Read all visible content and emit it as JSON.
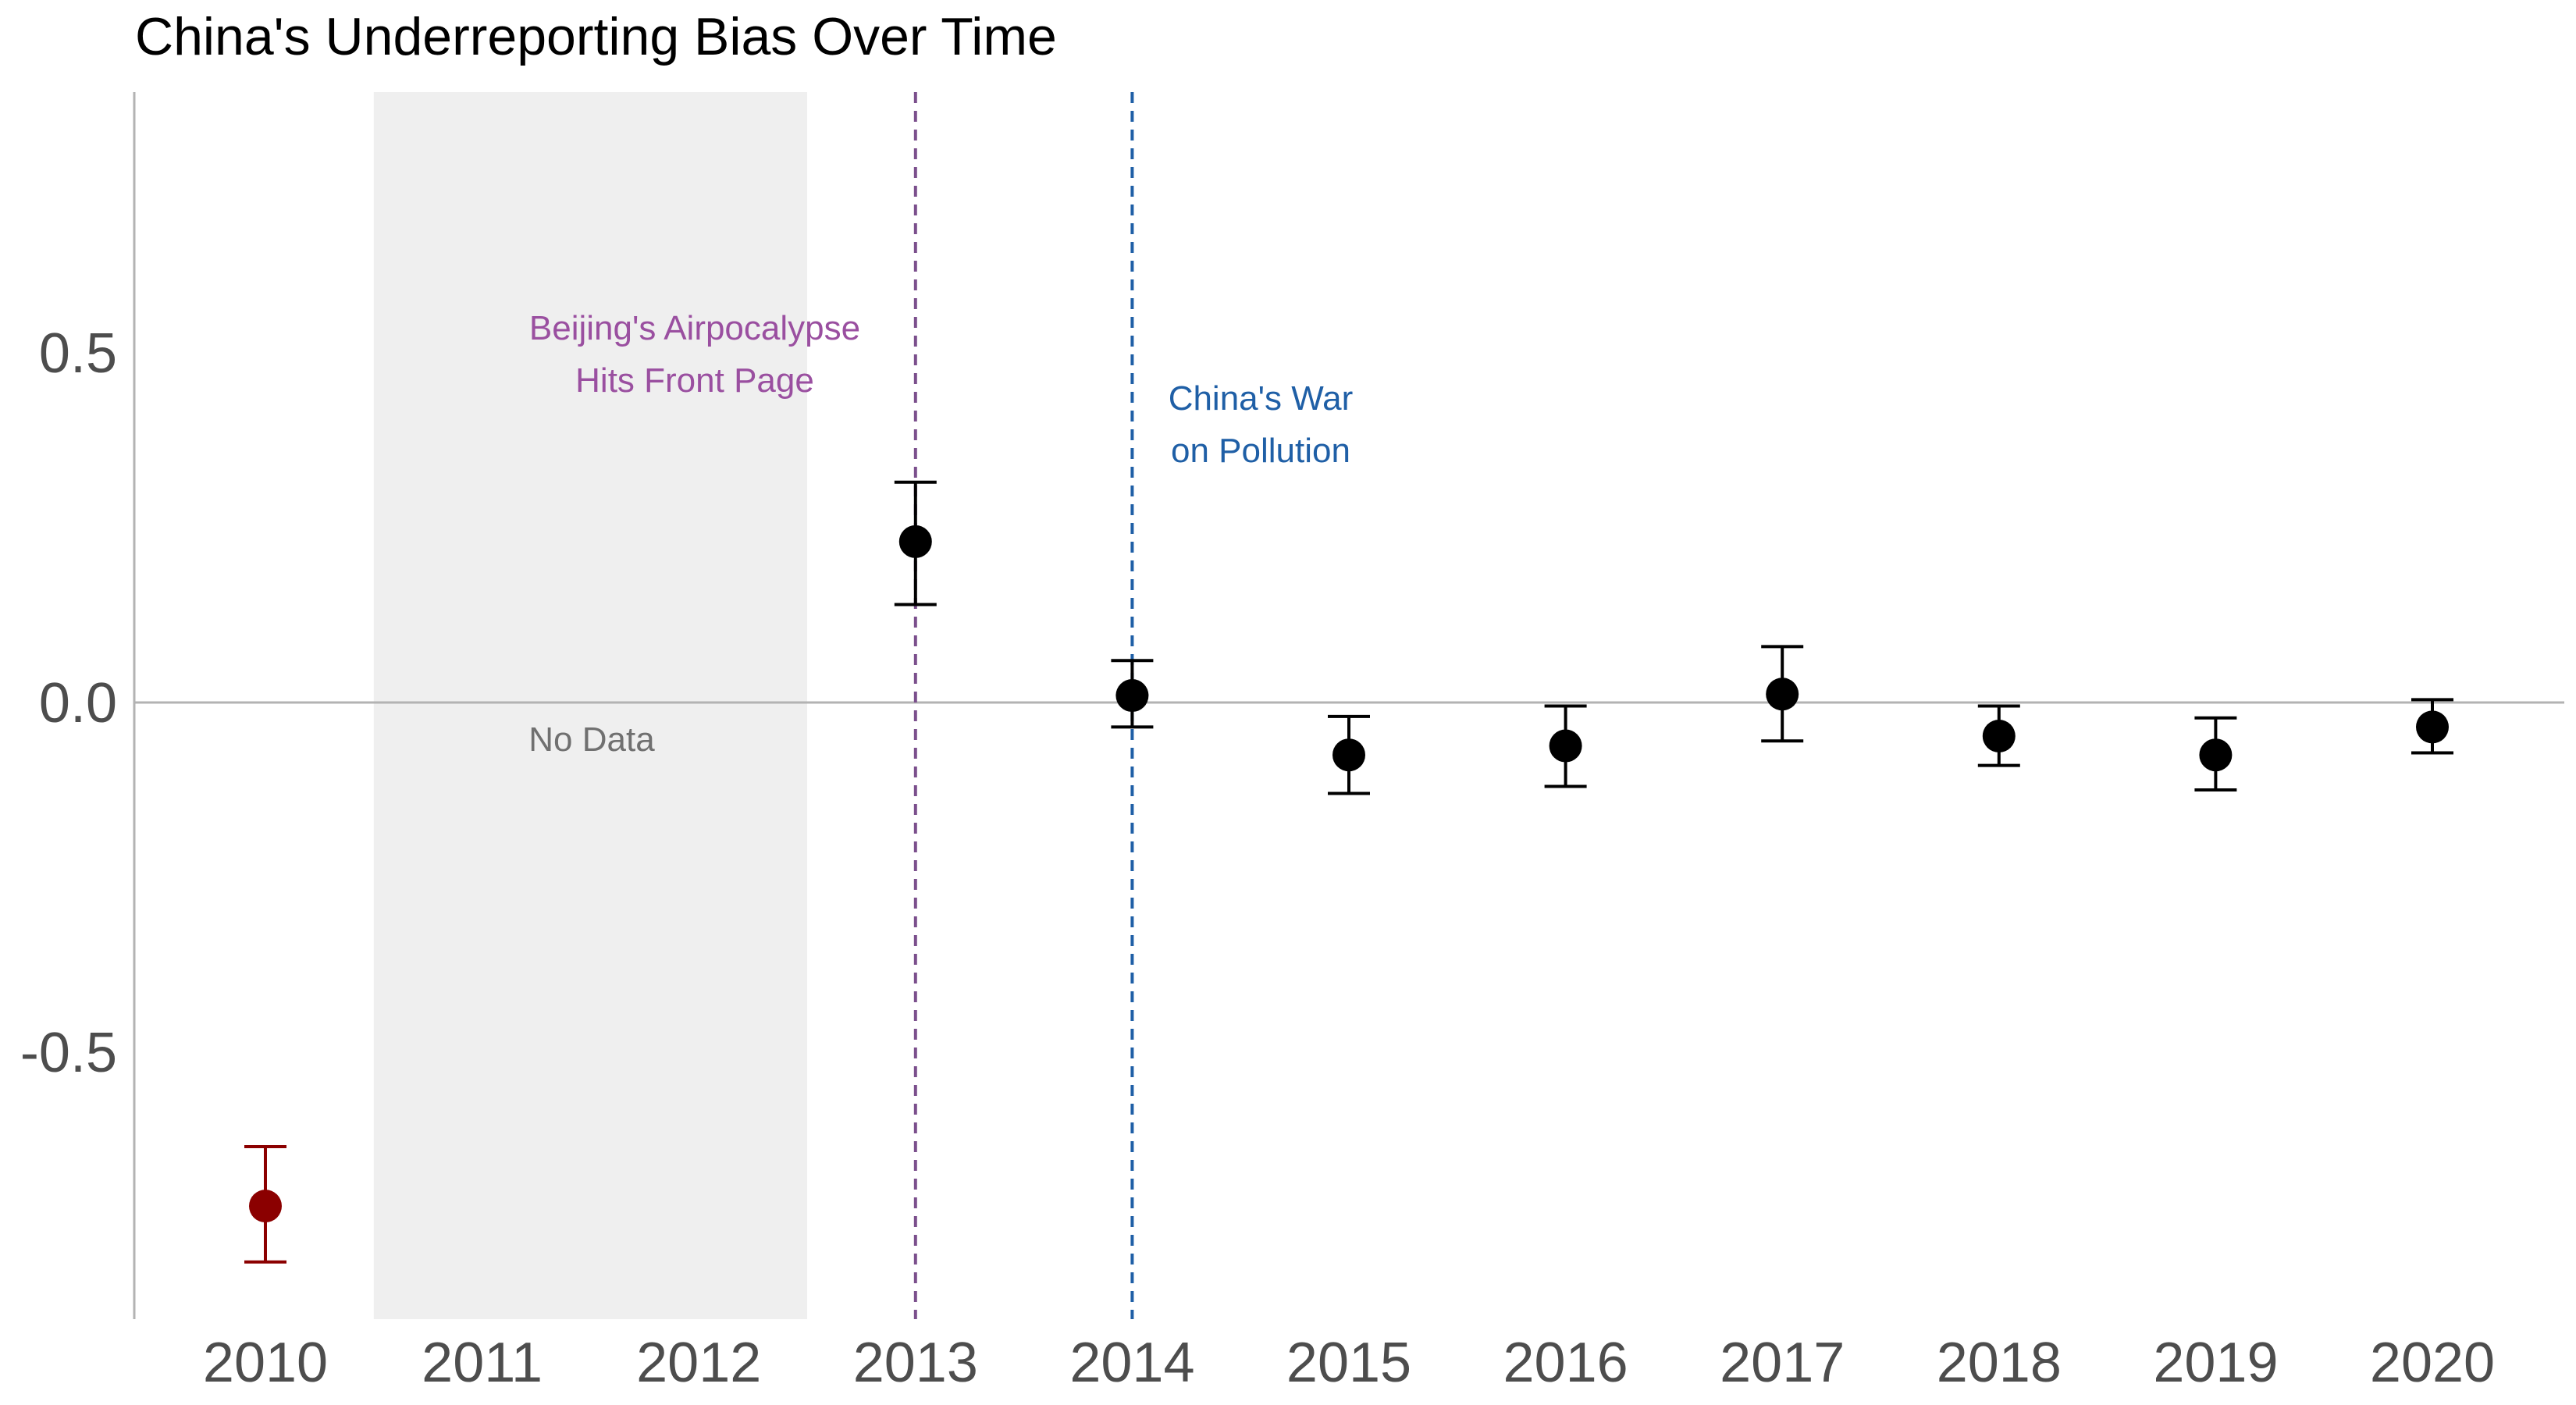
{
  "chart_data": {
    "type": "scatter",
    "title": "China's Underreporting Bias Over Time",
    "xlabel": "",
    "ylabel": "",
    "x_categories": [
      "2010",
      "2011",
      "2012",
      "2013",
      "2014",
      "2015",
      "2016",
      "2017",
      "2018",
      "2019",
      "2020"
    ],
    "y_ticks": [
      "0.5",
      "0.0",
      "-0.5"
    ],
    "y_tick_values": [
      0.5,
      0.0,
      -0.5
    ],
    "ylim": [
      -0.88,
      0.88
    ],
    "grid": false,
    "points": [
      {
        "x": "2010",
        "y": -0.72,
        "low": -0.8,
        "high": -0.635,
        "color": "#8B0000"
      },
      {
        "x": "2013",
        "y": 0.23,
        "low": 0.14,
        "high": 0.315,
        "color": "#000000"
      },
      {
        "x": "2014",
        "y": 0.01,
        "low": -0.035,
        "high": 0.06,
        "color": "#000000"
      },
      {
        "x": "2015",
        "y": -0.075,
        "low": -0.13,
        "high": -0.02,
        "color": "#000000"
      },
      {
        "x": "2016",
        "y": -0.062,
        "low": -0.12,
        "high": -0.005,
        "color": "#000000"
      },
      {
        "x": "2017",
        "y": 0.012,
        "low": -0.055,
        "high": 0.08,
        "color": "#000000"
      },
      {
        "x": "2018",
        "y": -0.048,
        "low": -0.09,
        "high": -0.005,
        "color": "#000000"
      },
      {
        "x": "2019",
        "y": -0.075,
        "low": -0.125,
        "high": -0.022,
        "color": "#000000"
      },
      {
        "x": "2020",
        "y": -0.035,
        "low": -0.072,
        "high": 0.004,
        "color": "#000000"
      }
    ],
    "shaded_region": {
      "from": "2011",
      "to": "2012",
      "label": "No Data",
      "color": "#efefef",
      "label_color": "#707070"
    },
    "vlines": [
      {
        "x": "2013",
        "color": "#7B4F8C",
        "label_lines": [
          "Beijing's Airpocalypse",
          "Hits Front Page"
        ],
        "label_color": "#9A4FA0"
      },
      {
        "x": "2014",
        "color": "#1F5FA6",
        "label_lines": [
          "China's War",
          "on Pollution"
        ],
        "label_color": "#1F5FA6"
      }
    ],
    "hline": {
      "y": 0.0,
      "color": "#b3b3b3"
    },
    "axis_color": "#b3b3b3"
  }
}
